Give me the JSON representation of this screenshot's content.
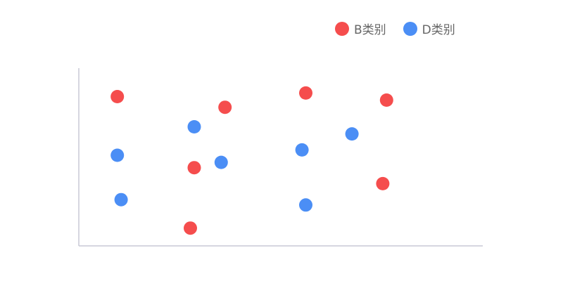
{
  "chart_data": {
    "type": "scatter",
    "grid": false,
    "axes_labels_shown": false,
    "legend_position": "top-right",
    "series": [
      {
        "name": "B类别",
        "color": "#f54d4d",
        "points": [
          [
            1,
            8.4
          ],
          [
            2.9,
            1.0
          ],
          [
            3.0,
            4.4
          ],
          [
            3.8,
            7.8
          ],
          [
            5.9,
            8.6
          ],
          [
            7.9,
            3.5
          ],
          [
            8.0,
            8.2
          ]
        ]
      },
      {
        "name": "D类别",
        "color": "#4b8ef5",
        "points": [
          [
            1,
            5.1
          ],
          [
            1.1,
            2.6
          ],
          [
            3.0,
            6.7
          ],
          [
            3.7,
            4.7
          ],
          [
            5.8,
            5.4
          ],
          [
            5.9,
            2.3
          ],
          [
            7.1,
            6.3
          ]
        ]
      }
    ],
    "xlim": [
      0,
      10.5
    ],
    "ylim": [
      0,
      10
    ]
  }
}
